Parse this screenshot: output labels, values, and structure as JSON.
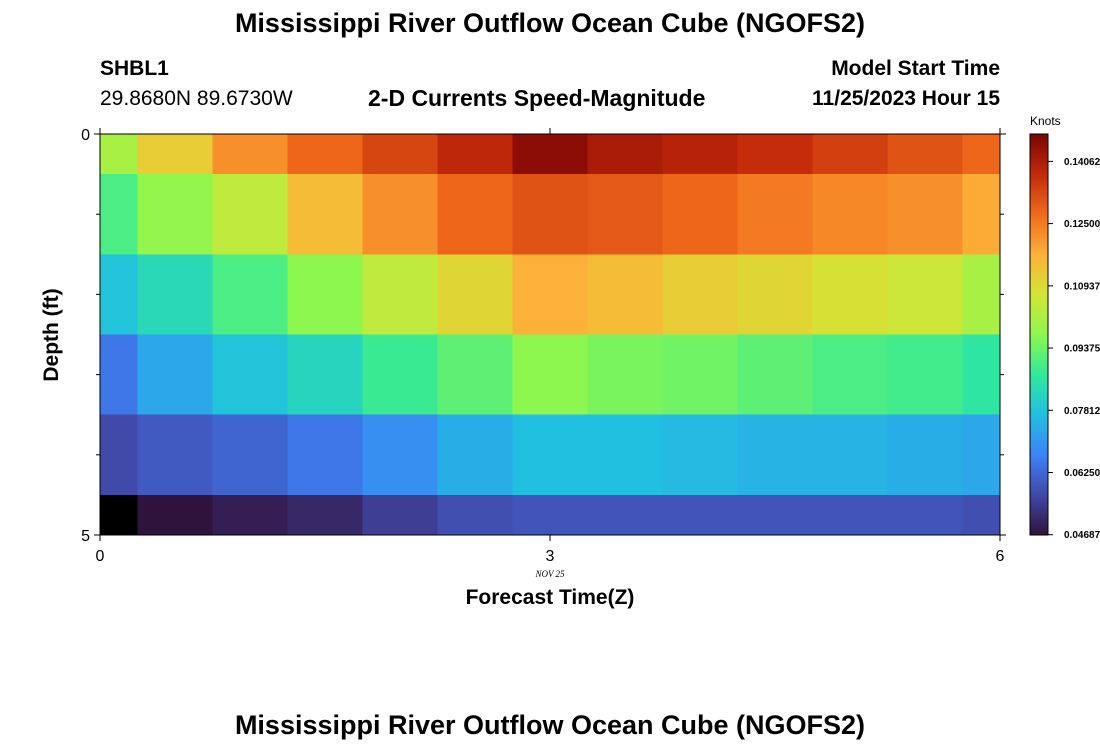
{
  "title": "Mississippi River Outflow Ocean Cube (NGOFS2)",
  "station": {
    "name": "SHBL1",
    "coords": "29.8680N  89.6730W"
  },
  "subtitle": "2-D Currents Speed-Magnitude",
  "model_start": {
    "label": "Model Start Time",
    "value": "11/25/2023 Hour 15"
  },
  "date_marker": "NOV 25",
  "footer_title": "Mississippi River Outflow Ocean Cube (NGOFS2)",
  "chart_data": {
    "type": "heatmap",
    "title": "2-D Currents Speed-Magnitude",
    "xlabel": "Forecast Time(Z)",
    "ylabel": "Depth (ft)",
    "xlim": [
      0,
      6
    ],
    "ylim": [
      0,
      5
    ],
    "x_ticks": [
      0,
      3,
      6
    ],
    "y_ticks": [
      0,
      5
    ],
    "x_edges": [
      0,
      0.25,
      0.75,
      1.25,
      1.75,
      2.25,
      2.75,
      3.25,
      3.75,
      4.25,
      4.75,
      5.25,
      5.75,
      6
    ],
    "y_edges": [
      0,
      0.5,
      1.5,
      2.5,
      3.5,
      4.5,
      5
    ],
    "values": [
      [
        0.101,
        0.112,
        0.122,
        0.128,
        0.133,
        0.138,
        0.145,
        0.141,
        0.139,
        0.137,
        0.134,
        0.131,
        0.128
      ],
      [
        0.09,
        0.098,
        0.104,
        0.115,
        0.122,
        0.128,
        0.131,
        0.13,
        0.128,
        0.125,
        0.123,
        0.122,
        0.118
      ],
      [
        0.078,
        0.083,
        0.09,
        0.097,
        0.104,
        0.11,
        0.117,
        0.115,
        0.112,
        0.11,
        0.108,
        0.106,
        0.101
      ],
      [
        0.065,
        0.073,
        0.078,
        0.082,
        0.088,
        0.092,
        0.097,
        0.095,
        0.094,
        0.092,
        0.09,
        0.089,
        0.086
      ],
      [
        0.057,
        0.06,
        0.062,
        0.065,
        0.069,
        0.074,
        0.077,
        0.077,
        0.076,
        0.075,
        0.075,
        0.074,
        0.073
      ],
      [
        0.04,
        0.047,
        0.049,
        0.051,
        0.055,
        0.058,
        0.059,
        0.059,
        0.059,
        0.059,
        0.059,
        0.059,
        0.058
      ]
    ],
    "colorbar": {
      "label": "Knots",
      "min": 0.0468,
      "max": 0.1475,
      "ticks": [
        "0.04687",
        "0.06250",
        "0.07812",
        "0.09375",
        "0.10937",
        "0.12500",
        "0.14062"
      ],
      "tick_values": [
        0.04687,
        0.0625,
        0.07812,
        0.09375,
        0.10937,
        0.125,
        0.14062
      ]
    }
  }
}
